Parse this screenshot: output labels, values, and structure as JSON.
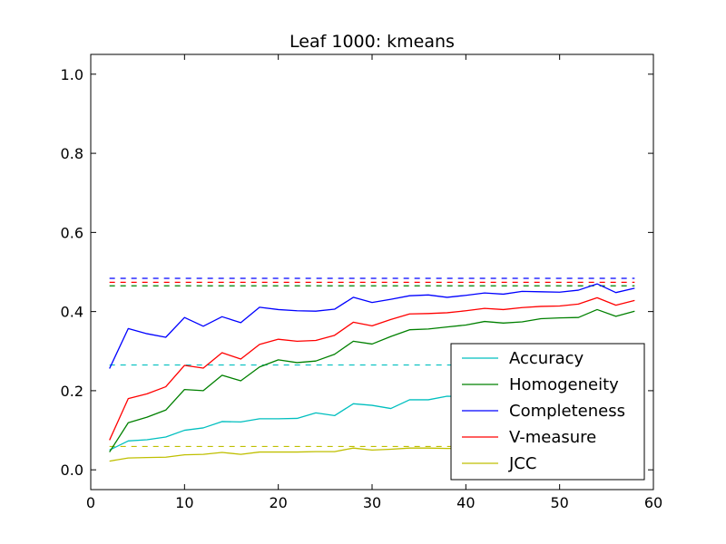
{
  "chart_data": {
    "type": "line",
    "title": "Leaf 1000: kmeans",
    "xlabel": "",
    "ylabel": "",
    "xlim": [
      0,
      60
    ],
    "ylim": [
      -0.05,
      1.05
    ],
    "xticks": [
      0,
      10,
      20,
      30,
      40,
      50,
      60
    ],
    "xtick_labels": [
      "0",
      "10",
      "20",
      "30",
      "40",
      "50",
      "60"
    ],
    "yticks": [
      0.0,
      0.2,
      0.4,
      0.6,
      0.8,
      1.0
    ],
    "ytick_labels": [
      "0.0",
      "0.2",
      "0.4",
      "0.6",
      "0.8",
      "1.0"
    ],
    "grid": false,
    "legend_position": "lower-right",
    "x": [
      2,
      4,
      6,
      8,
      10,
      12,
      14,
      16,
      18,
      20,
      22,
      24,
      26,
      28,
      30,
      32,
      34,
      36,
      38,
      40,
      42,
      44,
      46,
      48,
      50,
      52,
      54,
      56,
      58
    ],
    "series": [
      {
        "name": "Accuracy",
        "color": "#00bfbf",
        "values": [
          0.05,
          0.073,
          0.076,
          0.083,
          0.1,
          0.106,
          0.122,
          0.121,
          0.129,
          0.129,
          0.13,
          0.144,
          0.137,
          0.167,
          0.163,
          0.155,
          0.177,
          0.177,
          0.186,
          0.185,
          0.193,
          0.196,
          0.205,
          0.208,
          0.213,
          0.223,
          0.222,
          0.221,
          0.221
        ],
        "baseline": 0.265
      },
      {
        "name": "Homogeneity",
        "color": "#008000",
        "values": [
          0.045,
          0.119,
          0.133,
          0.151,
          0.203,
          0.2,
          0.239,
          0.225,
          0.26,
          0.278,
          0.271,
          0.275,
          0.292,
          0.325,
          0.318,
          0.337,
          0.354,
          0.356,
          0.361,
          0.366,
          0.375,
          0.371,
          0.374,
          0.382,
          0.384,
          0.385,
          0.405,
          0.388,
          0.401
        ],
        "baseline": 0.465
      },
      {
        "name": "Completeness",
        "color": "#0000ff",
        "values": [
          0.256,
          0.357,
          0.344,
          0.335,
          0.385,
          0.363,
          0.387,
          0.372,
          0.411,
          0.405,
          0.402,
          0.401,
          0.406,
          0.436,
          0.423,
          0.431,
          0.44,
          0.442,
          0.436,
          0.441,
          0.447,
          0.444,
          0.451,
          0.45,
          0.449,
          0.454,
          0.47,
          0.448,
          0.459
        ],
        "baseline": 0.484
      },
      {
        "name": "V-measure",
        "color": "#ff0000",
        "values": [
          0.075,
          0.18,
          0.192,
          0.21,
          0.264,
          0.257,
          0.296,
          0.28,
          0.317,
          0.33,
          0.325,
          0.327,
          0.34,
          0.373,
          0.364,
          0.38,
          0.394,
          0.395,
          0.397,
          0.402,
          0.408,
          0.405,
          0.41,
          0.413,
          0.414,
          0.419,
          0.435,
          0.416,
          0.428
        ],
        "baseline": 0.474
      },
      {
        "name": "JCC",
        "color": "#bfbf00",
        "values": [
          0.022,
          0.03,
          0.031,
          0.032,
          0.038,
          0.039,
          0.044,
          0.039,
          0.045,
          0.045,
          0.045,
          0.046,
          0.046,
          0.055,
          0.05,
          0.052,
          0.055,
          0.055,
          0.054,
          0.054,
          0.055,
          0.054,
          0.055,
          0.055,
          0.056,
          0.056,
          0.057,
          0.056,
          0.056
        ],
        "baseline": 0.059
      }
    ]
  }
}
